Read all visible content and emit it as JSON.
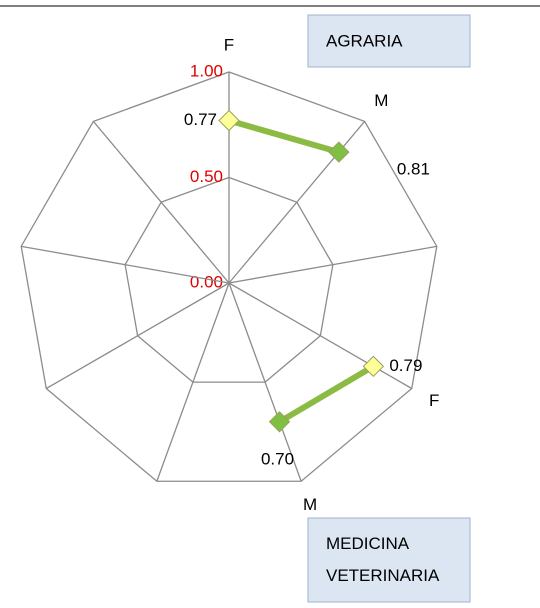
{
  "chart_data": {
    "type": "radar",
    "categories": [
      "F",
      "M",
      null,
      "F",
      "M",
      null,
      null,
      null,
      null
    ],
    "ylim": [
      0,
      1
    ],
    "yticks": [
      {
        "value": 0,
        "label": "0.00"
      },
      {
        "value": 0.5,
        "label": "0.50"
      },
      {
        "value": 1,
        "label": "1.00"
      }
    ],
    "series": [
      {
        "color": "#8cbb44",
        "values": [
          0.77,
          0.81,
          null,
          0.79,
          0.7,
          null,
          null,
          null,
          null
        ],
        "value_labels": [
          "0.77",
          "0.81",
          null,
          "0.79",
          "0.70",
          null,
          null,
          null,
          null
        ],
        "marker_colors": [
          "#ffff99",
          "#7fc043",
          null,
          "#ffff99",
          "#7fc043",
          null,
          null,
          null,
          null
        ]
      }
    ],
    "annotations": [
      "AGRARIA",
      "MEDICINA VETERINARIA"
    ]
  }
}
